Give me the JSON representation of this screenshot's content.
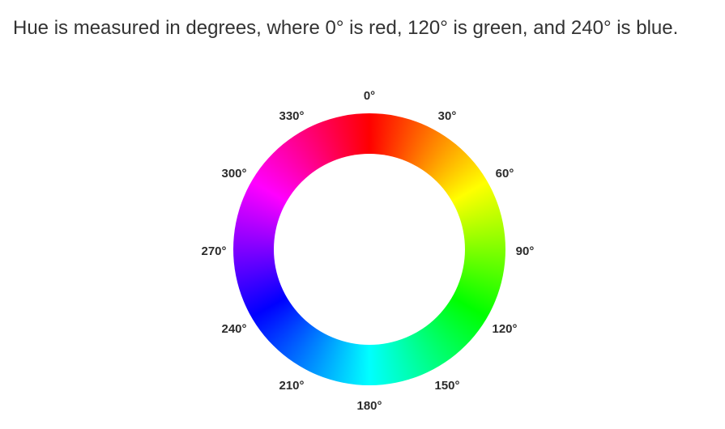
{
  "caption": "Hue is measured in degrees, where 0° is red, 120° is green, and 240° is blue.",
  "hue_wheel": {
    "stops": [
      {
        "hue": 0,
        "color": "#ff0000"
      },
      {
        "hue": 60,
        "color": "#ffff00"
      },
      {
        "hue": 120,
        "color": "#00ff00"
      },
      {
        "hue": 180,
        "color": "#00ffff"
      },
      {
        "hue": 240,
        "color": "#0000ff"
      },
      {
        "hue": 300,
        "color": "#ff00ff"
      }
    ],
    "labels": [
      "0°",
      "30°",
      "60°",
      "90°",
      "120°",
      "150°",
      "180°",
      "210°",
      "240°",
      "270°",
      "300°",
      "330°"
    ]
  }
}
